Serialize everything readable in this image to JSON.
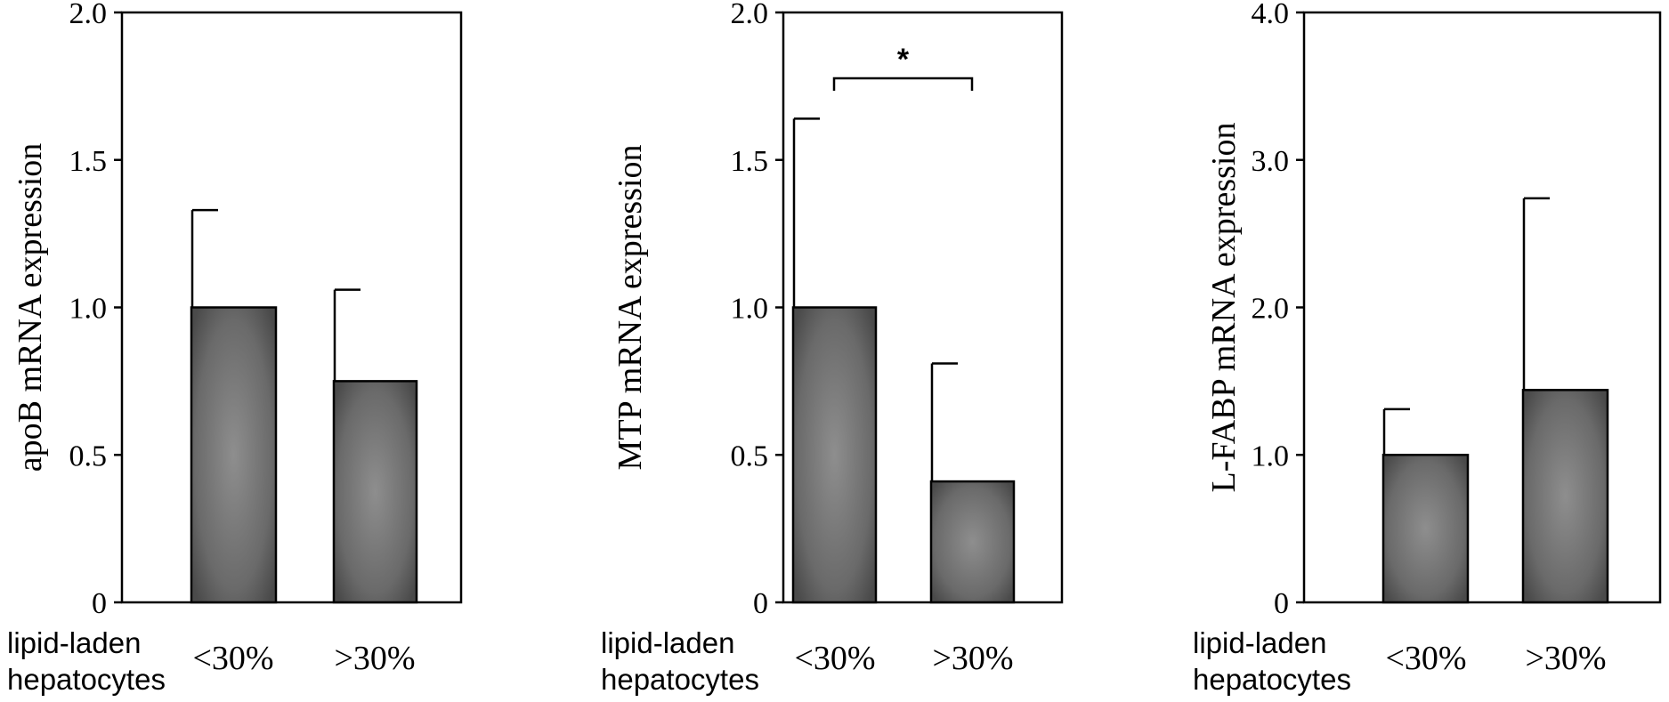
{
  "x_group_label": [
    "lipid-laden",
    "hepatocytes"
  ],
  "chart_data": [
    {
      "type": "bar",
      "ylabel": "apoB mRNA expression",
      "categories": [
        "<30%",
        ">30%"
      ],
      "values": [
        1.0,
        0.75
      ],
      "error_upper": [
        1.33,
        1.06
      ],
      "ylim": [
        0,
        2.0
      ],
      "yticks": [
        "0",
        "0.5",
        "1.0",
        "1.5",
        "2.0"
      ],
      "significance": null
    },
    {
      "type": "bar",
      "ylabel": "MTP mRNA expression",
      "categories": [
        "<30%",
        ">30%"
      ],
      "values": [
        1.0,
        0.41
      ],
      "error_upper": [
        1.64,
        0.81
      ],
      "ylim": [
        0,
        2.0
      ],
      "yticks": [
        "0",
        "0.5",
        "1.0",
        "1.5",
        "2.0"
      ],
      "significance": "*"
    },
    {
      "type": "bar",
      "ylabel": "L-FABP mRNA expression",
      "categories": [
        "<30%",
        ">30%"
      ],
      "values": [
        1.0,
        1.44
      ],
      "error_upper": [
        1.31,
        2.74
      ],
      "ylim": [
        0,
        4.0
      ],
      "yticks": [
        "0",
        "1.0",
        "2.0",
        "3.0",
        "4.0"
      ],
      "significance": null
    }
  ]
}
